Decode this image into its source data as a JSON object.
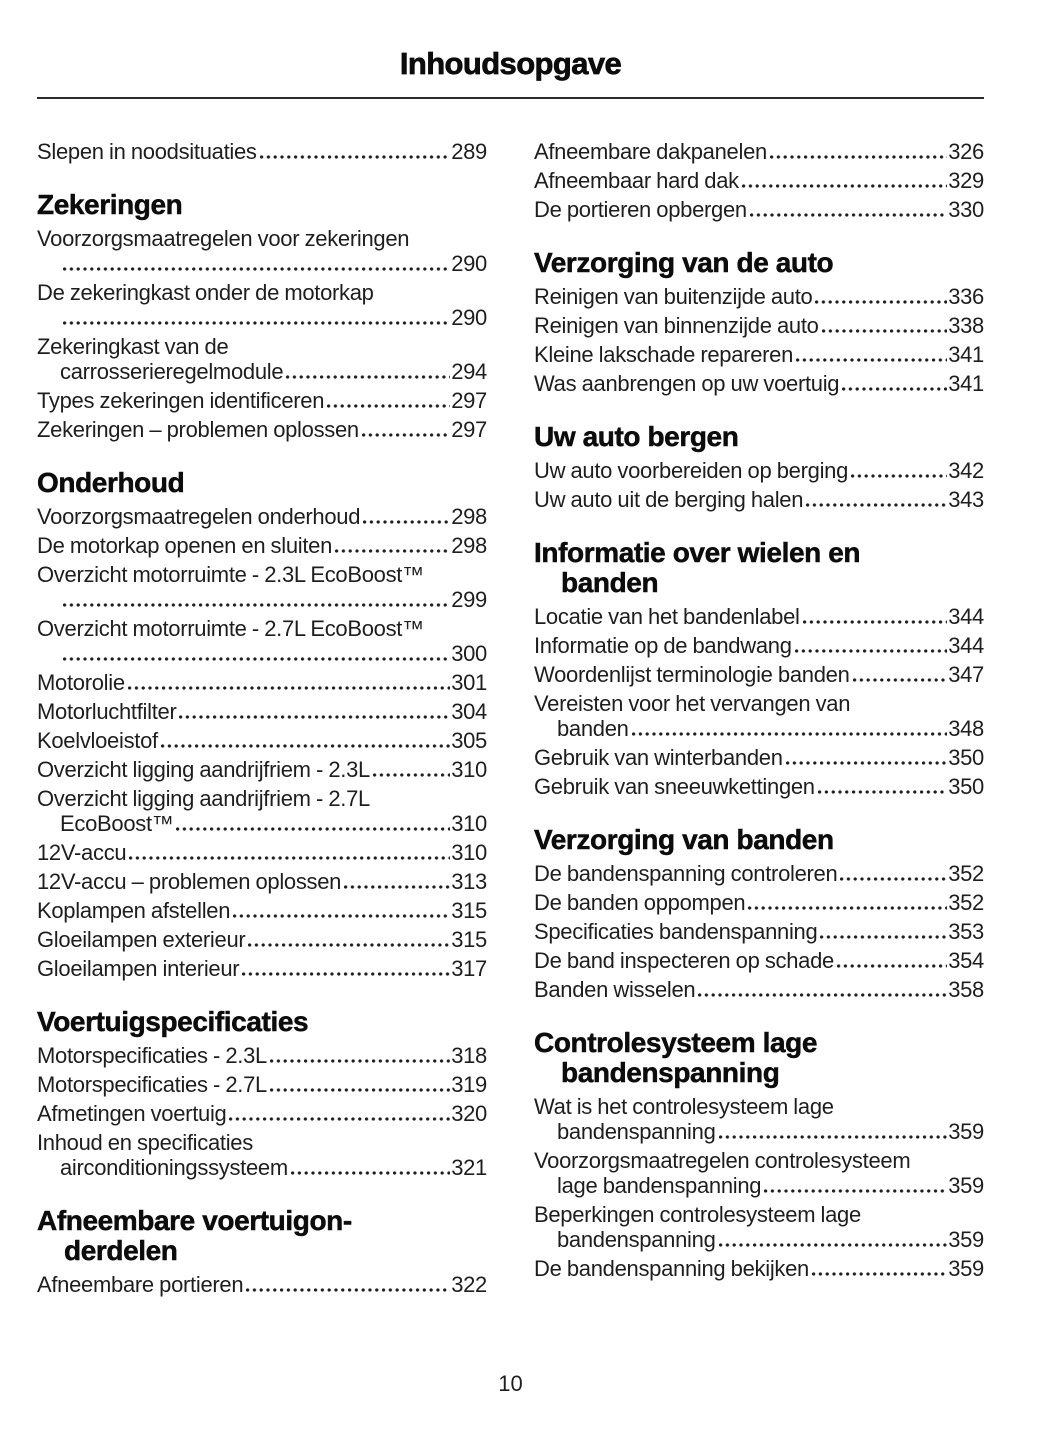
{
  "page": {
    "title": "Inhoudsopgave",
    "number": "10"
  },
  "colors": {
    "text": "#1e1e1e",
    "heading": "#0c0c0c",
    "rule": "#2a2a2a",
    "background": "#ffffff"
  },
  "columns": [
    {
      "blocks": [
        {
          "heading": null,
          "entries": [
            {
              "t": "Slepen in noodsituaties",
              "p": "289"
            }
          ]
        },
        {
          "heading": [
            "Zekeringen"
          ],
          "entries": [
            {
              "t": "Voorzorgsmaatregelen voor zekeringen",
              "p": "290",
              "br": ""
            },
            {
              "t": "De zekeringkast onder de motorkap",
              "p": "290",
              "br": ""
            },
            {
              "t": "Zekeringkast van de carrosserieregelmodule",
              "p": "294",
              "br": "carrosserieregelmodule"
            },
            {
              "t": "Types zekeringen identificeren",
              "p": "297"
            },
            {
              "t": "Zekeringen – problemen oplossen",
              "p": "297"
            }
          ]
        },
        {
          "heading": [
            "Onderhoud"
          ],
          "entries": [
            {
              "t": "Voorzorgsmaatregelen onderhoud",
              "p": "298"
            },
            {
              "t": "De motorkap openen en sluiten",
              "p": "298"
            },
            {
              "t": "Overzicht motorruimte - 2.3L EcoBoost™",
              "p": "299",
              "br": ""
            },
            {
              "t": "Overzicht motorruimte - 2.7L EcoBoost™",
              "p": "300",
              "br": ""
            },
            {
              "t": "Motorolie",
              "p": "301"
            },
            {
              "t": "Motorluchtfilter",
              "p": "304"
            },
            {
              "t": "Koelvloeistof",
              "p": "305"
            },
            {
              "t": "Overzicht ligging aandrijfriem - 2.3L",
              "p": "310"
            },
            {
              "t": "Overzicht ligging aandrijfriem - 2.7L EcoBoost™",
              "p": "310",
              "br": "EcoBoost™"
            },
            {
              "t": "12V-accu",
              "p": "310"
            },
            {
              "t": "12V-accu – problemen oplossen",
              "p": "313"
            },
            {
              "t": "Koplampen afstellen",
              "p": "315"
            },
            {
              "t": "Gloeilampen exterieur",
              "p": "315"
            },
            {
              "t": "Gloeilampen interieur",
              "p": "317"
            }
          ]
        },
        {
          "heading": [
            "Voertuigspecificaties"
          ],
          "entries": [
            {
              "t": "Motorspecificaties - 2.3L",
              "p": "318"
            },
            {
              "t": "Motorspecificaties - 2.7L",
              "p": "319"
            },
            {
              "t": "Afmetingen voertuig",
              "p": "320"
            },
            {
              "t": "Inhoud en specificaties airconditioningssysteem",
              "p": "321",
              "br": "airconditioningssysteem"
            }
          ]
        },
        {
          "heading": [
            "Afneembare voertuigon-",
            "derdelen"
          ],
          "entries": [
            {
              "t": "Afneembare portieren",
              "p": "322"
            }
          ]
        }
      ]
    },
    {
      "blocks": [
        {
          "heading": null,
          "entries": [
            {
              "t": "Afneembare dakpanelen",
              "p": "326"
            },
            {
              "t": "Afneembaar hard dak",
              "p": "329"
            },
            {
              "t": "De portieren opbergen",
              "p": "330"
            }
          ]
        },
        {
          "heading": [
            "Verzorging van de auto"
          ],
          "entries": [
            {
              "t": "Reinigen van buitenzijde auto",
              "p": "336"
            },
            {
              "t": "Reinigen van binnenzijde auto",
              "p": "338"
            },
            {
              "t": "Kleine lakschade repareren",
              "p": "341"
            },
            {
              "t": "Was aanbrengen op uw voertuig",
              "p": "341"
            }
          ]
        },
        {
          "heading": [
            "Uw auto bergen"
          ],
          "entries": [
            {
              "t": "Uw auto voorbereiden op berging",
              "p": "342"
            },
            {
              "t": "Uw auto uit de berging halen",
              "p": "343"
            }
          ]
        },
        {
          "heading": [
            "Informatie over wielen en",
            "banden"
          ],
          "entries": [
            {
              "t": "Locatie van het bandenlabel",
              "p": "344"
            },
            {
              "t": "Informatie op de bandwang",
              "p": "344"
            },
            {
              "t": "Woordenlijst terminologie banden",
              "p": "347"
            },
            {
              "t": "Vereisten voor het vervangen van banden",
              "p": "348",
              "br": "banden"
            },
            {
              "t": "Gebruik van winterbanden",
              "p": "350"
            },
            {
              "t": "Gebruik van sneeuwkettingen",
              "p": "350"
            }
          ]
        },
        {
          "heading": [
            "Verzorging van banden"
          ],
          "entries": [
            {
              "t": "De bandenspanning controleren",
              "p": "352"
            },
            {
              "t": "De banden oppompen",
              "p": "352"
            },
            {
              "t": "Specificaties bandenspanning",
              "p": "353"
            },
            {
              "t": "De band inspecteren op schade",
              "p": "354"
            },
            {
              "t": "Banden wisselen",
              "p": "358"
            }
          ]
        },
        {
          "heading": [
            "Controlesysteem lage",
            "bandenspanning"
          ],
          "entries": [
            {
              "t": "Wat is het controlesysteem lage bandenspanning",
              "p": "359",
              "br": "bandenspanning"
            },
            {
              "t": "Voorzorgsmaatregelen controlesysteem lage bandenspanning",
              "p": "359",
              "br": "lage bandenspanning"
            },
            {
              "t": "Beperkingen controlesysteem lage bandenspanning",
              "p": "359",
              "br": "bandenspanning"
            },
            {
              "t": "De bandenspanning bekijken",
              "p": "359"
            }
          ]
        }
      ]
    }
  ]
}
